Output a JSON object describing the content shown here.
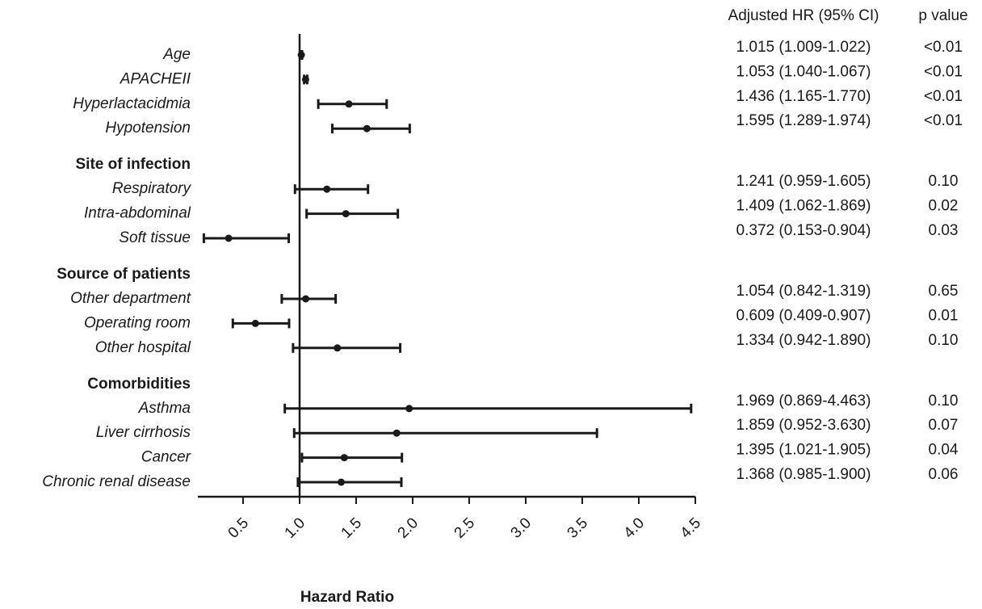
{
  "chart_data": {
    "type": "forest",
    "x_label": "Hazard Ratio",
    "column_headers": [
      "Adjusted HR (95% CI)",
      "p value"
    ],
    "xlim": [
      0.1,
      4.5
    ],
    "xticks": [
      0.5,
      {
        "value": 1,
        "label": "1.0"
      },
      1.5,
      {
        "value": 2,
        "label": "2.0"
      },
      2.5,
      {
        "value": 3,
        "label": "3.0"
      },
      3.5,
      {
        "value": 4,
        "label": "4.0"
      },
      4.5
    ],
    "reference": 1,
    "color": "#1a1a1a",
    "rows": [
      {
        "label": "Age",
        "hr": 1.015,
        "lower": 1.009,
        "upper": 1.022,
        "ci_label": "1.015 (1.009-1.022)",
        "p_label": "<0.01"
      },
      {
        "label": "APACHEII",
        "hr": 1.053,
        "lower": 1.04,
        "upper": 1.067,
        "ci_label": "1.053 (1.040-1.067)",
        "p_label": "<0.01"
      },
      {
        "label": "Hyperlactacidmia",
        "hr": 1.436,
        "lower": 1.165,
        "upper": 1.77,
        "ci_label": "1.436 (1.165-1.770)",
        "p_label": "<0.01"
      },
      {
        "label": "Hypotension",
        "hr": 1.595,
        "lower": 1.289,
        "upper": 1.974,
        "ci_label": "1.595 (1.289-1.974)",
        "p_label": "<0.01"
      },
      {
        "label": "Site of infection",
        "header": true
      },
      {
        "label": "Respiratory",
        "hr": 1.241,
        "lower": 0.959,
        "upper": 1.605,
        "ci_label": "1.241 (0.959-1.605)",
        "p_label": "0.10"
      },
      {
        "label": "Intra-abdominal",
        "hr": 1.409,
        "lower": 1.062,
        "upper": 1.869,
        "ci_label": "1.409 (1.062-1.869)",
        "p_label": "0.02"
      },
      {
        "label": "Soft tissue",
        "hr": 0.372,
        "lower": 0.153,
        "upper": 0.904,
        "ci_label": "0.372 (0.153-0.904)",
        "p_label": "0.03"
      },
      {
        "label": "Source of patients",
        "header": true
      },
      {
        "label": "Other department",
        "hr": 1.054,
        "lower": 0.842,
        "upper": 1.319,
        "ci_label": "1.054 (0.842-1.319)",
        "p_label": "0.65"
      },
      {
        "label": "Operating room",
        "hr": 0.609,
        "lower": 0.409,
        "upper": 0.907,
        "ci_label": "0.609 (0.409-0.907)",
        "p_label": "0.01"
      },
      {
        "label": "Other hospital",
        "hr": 1.334,
        "lower": 0.942,
        "upper": 1.89,
        "ci_label": "1.334 (0.942-1.890)",
        "p_label": "0.10"
      },
      {
        "label": "Comorbidities",
        "header": true
      },
      {
        "label": "Asthma",
        "hr": 1.969,
        "lower": 0.869,
        "upper": 4.463,
        "ci_label": "1.969 (0.869-4.463)",
        "p_label": "0.10"
      },
      {
        "label": "Liver cirrhosis",
        "hr": 1.859,
        "lower": 0.952,
        "upper": 3.63,
        "ci_label": "1.859 (0.952-3.630)",
        "p_label": "0.07"
      },
      {
        "label": "Cancer",
        "hr": 1.395,
        "lower": 1.021,
        "upper": 1.905,
        "ci_label": "1.395 (1.021-1.905)",
        "p_label": "0.04"
      },
      {
        "label": "Chronic renal disease",
        "hr": 1.368,
        "lower": 0.985,
        "upper": 1.9,
        "ci_label": "1.368 (0.985-1.900)",
        "p_label": "0.06"
      }
    ]
  }
}
